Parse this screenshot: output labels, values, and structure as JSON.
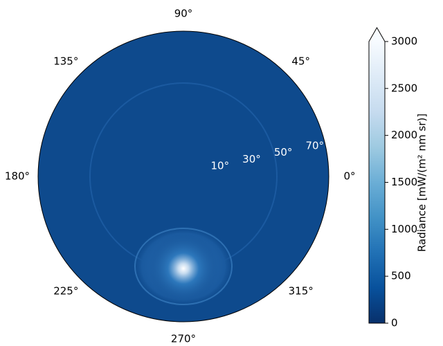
{
  "chart_data": {
    "type": "polar-image",
    "thetaticks": [
      {
        "value": 90,
        "label": "90°"
      },
      {
        "value": 45,
        "label": "45°"
      },
      {
        "value": 135,
        "label": "135°"
      },
      {
        "value": 180,
        "label": "180°"
      },
      {
        "value": 0,
        "label": "0°"
      },
      {
        "value": 225,
        "label": "225°"
      },
      {
        "value": 315,
        "label": "315°"
      },
      {
        "value": 270,
        "label": "270°"
      }
    ],
    "rlim": [
      0,
      90
    ],
    "rticks": [
      {
        "value": 10,
        "label": "10°"
      },
      {
        "value": 30,
        "label": "30°"
      },
      {
        "value": 50,
        "label": "50°"
      },
      {
        "value": 70,
        "label": "70°"
      }
    ],
    "colorbar": {
      "label": "Radiance [mW/(m² nm sr)]",
      "clim": [
        0,
        3000
      ],
      "ticks": [
        0,
        500,
        1000,
        1500,
        2000,
        2500,
        3000
      ],
      "extend": "max",
      "colormap": [
        "#08306b",
        "#08519c",
        "#2171b5",
        "#4292c6",
        "#6baed6",
        "#9ecae1",
        "#c6dbef",
        "#deebf7",
        "#f7fbff"
      ]
    }
  }
}
